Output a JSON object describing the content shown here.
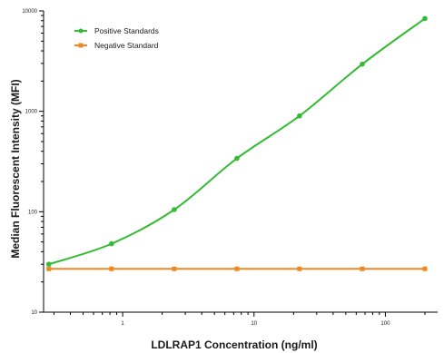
{
  "chart_data": {
    "type": "line",
    "x_scale": "log",
    "y_scale": "log",
    "xlabel": "LDLRAP1 Concentration (ng/ml)",
    "ylabel": "Median Fluorescent Intensity (MFI)",
    "xlim": [
      0.25,
      250
    ],
    "ylim": [
      10,
      10000
    ],
    "x_ticks": [
      1,
      10,
      100
    ],
    "x_tick_labels": [
      "1",
      "10",
      "100"
    ],
    "y_ticks": [
      10,
      100,
      1000,
      10000
    ],
    "y_tick_labels": [
      "10",
      "100",
      "1000",
      "10000"
    ],
    "grid": false,
    "legend_position": "top-left",
    "series": [
      {
        "name": "Positive Standards",
        "color": "#33bb33",
        "marker": "circle",
        "x": [
          0.274,
          0.823,
          2.47,
          7.41,
          22.2,
          66.7,
          200
        ],
        "y": [
          30,
          48,
          105,
          340,
          900,
          2950,
          8400
        ],
        "fit": "curve"
      },
      {
        "name": "Negative Standard",
        "color": "#ee8822",
        "marker": "square",
        "x": [
          0.274,
          0.823,
          2.47,
          7.41,
          22.2,
          66.7,
          200
        ],
        "y": [
          27,
          27,
          27,
          27,
          27,
          27,
          27
        ],
        "fit": "line"
      }
    ]
  }
}
